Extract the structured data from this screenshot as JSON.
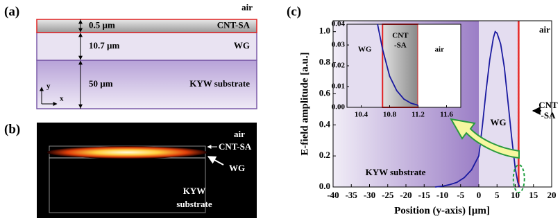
{
  "panel_a": {
    "label": "(a)",
    "air": "air",
    "layers": [
      {
        "thickness": "0.5 µm",
        "name": "CNT-SA"
      },
      {
        "thickness": "10.7 µm",
        "name": "WG"
      },
      {
        "thickness": "50 µm",
        "name": "KYW substrate"
      }
    ],
    "axis_y": "y",
    "axis_x": "x"
  },
  "panel_b": {
    "label": "(b)",
    "air": "air",
    "cnt": "CNT-SA",
    "wg": "WG",
    "substrate": [
      "KYW",
      "substrate"
    ]
  },
  "chart_data": {
    "type": "line",
    "label": "(c)",
    "xlabel": "Position (y-axis) [µm]",
    "ylabel": "E-field amplitude [a.u.]",
    "xlim": [
      -40,
      20
    ],
    "xticks": [
      -40,
      -35,
      -30,
      -25,
      -20,
      -15,
      -10,
      -5,
      0,
      5,
      10,
      15,
      20
    ],
    "ylim": [
      0,
      1.07
    ],
    "yticks": [
      {
        "value": 0,
        "label": "0.0"
      },
      0.2,
      0.4,
      0.6,
      0.8,
      {
        "value": 1,
        "label": "1.0"
      }
    ],
    "regions": [
      {
        "name": "KYW substrate",
        "from": -40,
        "to": 0,
        "color": "#9b7ec6"
      },
      {
        "name": "WG",
        "from": 0,
        "to": 10.7,
        "color": "#e4ddf0"
      },
      {
        "name": [
          "CNT",
          "-SA"
        ],
        "from": 10.7,
        "to": 11.2,
        "color": "#e02020"
      },
      {
        "name": "air",
        "from": 11.2,
        "to": 20,
        "color": "#ffffff"
      }
    ],
    "series": [
      {
        "color": "#1a1aa0",
        "x": [
          -12,
          -10,
          -8,
          -6,
          -4,
          -2,
          0,
          1,
          2,
          3,
          4,
          4.5,
          5,
          6,
          7,
          8,
          9,
          10,
          10.7,
          11.2
        ],
        "values": [
          0,
          0.005,
          0.015,
          0.03,
          0.06,
          0.11,
          0.2,
          0.4,
          0.62,
          0.82,
          0.96,
          1.0,
          0.99,
          0.92,
          0.77,
          0.55,
          0.32,
          0.12,
          0.03,
          0
        ]
      }
    ],
    "inset": {
      "xlim": [
        10.2,
        11.8
      ],
      "xticks": [
        10.4,
        10.8,
        11.2,
        11.6
      ],
      "ylim": [
        0,
        0.04
      ],
      "yticks": [
        {
          "value": 0,
          "label": "0.00"
        },
        0.01,
        0.02,
        0.03,
        {
          "value": 0.04,
          "label": "0.04"
        }
      ],
      "regions": [
        {
          "name": "WG",
          "from": 10.2,
          "to": 10.7
        },
        {
          "name": [
            "CNT",
            "-SA"
          ],
          "from": 10.7,
          "to": 11.2
        },
        {
          "name": "air",
          "from": 11.2,
          "to": 11.8
        }
      ],
      "x": [
        10.63,
        10.7,
        10.8,
        10.9,
        11.0,
        11.1,
        11.2
      ],
      "values": [
        0.04,
        0.028,
        0.015,
        0.008,
        0.004,
        0.002,
        0.001
      ]
    }
  }
}
